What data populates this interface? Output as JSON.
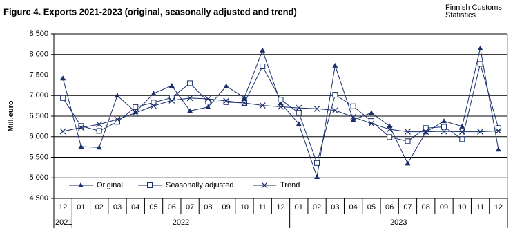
{
  "chart_data": {
    "type": "line",
    "title": "Figure 4. Exports  2021-2023  (original, seasonally adjusted and trend)",
    "source": "Finnish Customs Statistics",
    "y_label": "Mill.euro",
    "categories": [
      "12",
      "01",
      "02",
      "03",
      "04",
      "05",
      "06",
      "07",
      "08",
      "09",
      "10",
      "11",
      "12",
      "01",
      "02",
      "03",
      "04",
      "05",
      "06",
      "07",
      "08",
      "09",
      "10",
      "11",
      "12"
    ],
    "categories_year": [
      "2021",
      "2022",
      null,
      null,
      null,
      null,
      null,
      null,
      null,
      null,
      null,
      null,
      null,
      "2023",
      null,
      null,
      null,
      null,
      null,
      null,
      null,
      null,
      null,
      null,
      null
    ],
    "series": [
      {
        "name": "Original",
        "color": "#1a2f6b",
        "marker": "triangle",
        "values": [
          7420,
          5760,
          5740,
          7000,
          6600,
          7050,
          7240,
          6630,
          6720,
          7230,
          6950,
          8100,
          6820,
          6310,
          5020,
          7730,
          6410,
          6580,
          6260,
          5350,
          6110,
          6380,
          6250,
          8150,
          5690
        ]
      },
      {
        "name": "Seasonally adjusted",
        "color": "#1a2f6b",
        "marker": "square",
        "values": [
          6940,
          6260,
          6140,
          6360,
          6720,
          6830,
          6950,
          7300,
          6850,
          6840,
          6820,
          7710,
          6900,
          6580,
          5360,
          7020,
          6740,
          6380,
          5990,
          5890,
          6210,
          6240,
          5940,
          7770,
          6210
        ]
      },
      {
        "name": "Trend",
        "color": "#1a2f6b",
        "marker": "x",
        "values": [
          6130,
          6220,
          6300,
          6420,
          6580,
          6750,
          6880,
          6940,
          6920,
          6870,
          6820,
          6760,
          6730,
          6700,
          6680,
          6640,
          6480,
          6320,
          6180,
          6120,
          6120,
          6130,
          6120,
          6120,
          6140
        ]
      }
    ],
    "ylim": [
      4500,
      8500
    ],
    "yticks": [
      {
        "value": 4500,
        "label": "4 500"
      },
      {
        "value": 5000,
        "label": "5 000"
      },
      {
        "value": 5500,
        "label": "5 500"
      },
      {
        "value": 6000,
        "label": "6 000"
      },
      {
        "value": 6500,
        "label": "6 500"
      },
      {
        "value": 7000,
        "label": "7 000"
      },
      {
        "value": 7500,
        "label": "7 500"
      },
      {
        "value": 8000,
        "label": "8 000"
      },
      {
        "value": 8500,
        "label": "8 500"
      }
    ],
    "grid": true,
    "legend": "lower left"
  }
}
